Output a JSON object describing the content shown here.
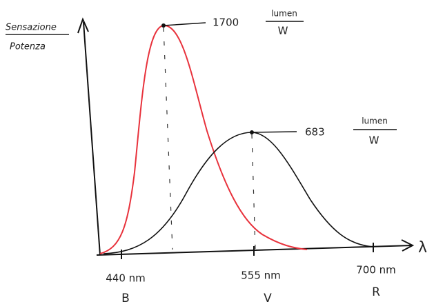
{
  "y_axis": {
    "label_top": "Sensazione",
    "label_bottom": "Potenza"
  },
  "x_axis": {
    "symbol": "λ",
    "labels": [
      {
        "wavelength": "440 nm",
        "color": "B"
      },
      {
        "wavelength": "555 nm",
        "color": "V"
      },
      {
        "wavelength": "700 nm",
        "color": "R"
      }
    ]
  },
  "annotations": [
    {
      "value": "1700",
      "unit_top": "lumen",
      "unit_bottom": "W"
    },
    {
      "value": "683",
      "unit_top": "lumen",
      "unit_bottom": "W"
    }
  ]
}
